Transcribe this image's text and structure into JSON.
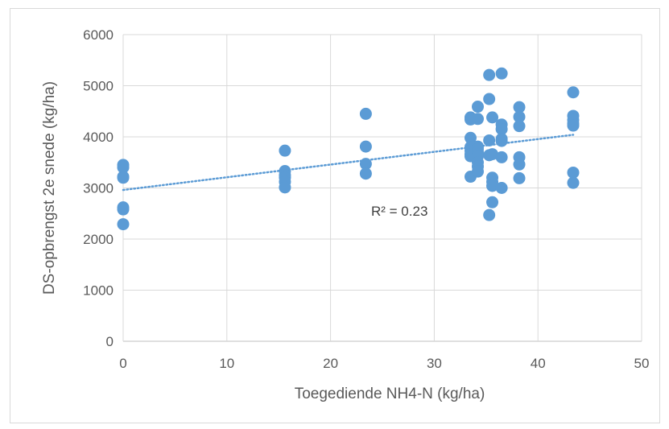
{
  "chart_data": {
    "type": "scatter",
    "xlabel": "Toegediende NH4-N (kg/ha)",
    "ylabel": "DS-opbrengst 2e snede (kg/ha)",
    "xlim": [
      0,
      50
    ],
    "ylim": [
      0,
      6000
    ],
    "xticks": [
      "0",
      "10",
      "20",
      "30",
      "40",
      "50"
    ],
    "yticks": [
      "0",
      "1000",
      "2000",
      "3000",
      "4000",
      "5000",
      "6000"
    ],
    "grid": true,
    "legend": "none",
    "marker_color": "#5b9bd5",
    "trendline": {
      "type": "linear",
      "style": "dotted",
      "x_start": 0,
      "y_start": 2960,
      "x_end": 43.4,
      "y_end": 4040,
      "label": "R² = 0.23"
    },
    "series": [
      {
        "points": [
          [
            0,
            3450
          ],
          [
            0,
            3400
          ],
          [
            0,
            3220
          ],
          [
            0,
            3200
          ],
          [
            0,
            2620
          ],
          [
            0,
            2580
          ],
          [
            0,
            2290
          ],
          [
            15.6,
            3730
          ],
          [
            15.6,
            3330
          ],
          [
            15.6,
            3250
          ],
          [
            15.6,
            3200
          ],
          [
            15.6,
            3120
          ],
          [
            15.6,
            3010
          ],
          [
            23.4,
            4450
          ],
          [
            23.4,
            3810
          ],
          [
            23.4,
            3470
          ],
          [
            23.4,
            3280
          ],
          [
            33.5,
            4380
          ],
          [
            33.5,
            4340
          ],
          [
            33.5,
            3980
          ],
          [
            33.5,
            3800
          ],
          [
            33.5,
            3730
          ],
          [
            33.5,
            3660
          ],
          [
            33.5,
            3620
          ],
          [
            33.5,
            3220
          ],
          [
            34.2,
            4590
          ],
          [
            34.2,
            4350
          ],
          [
            34.2,
            3810
          ],
          [
            34.2,
            3760
          ],
          [
            34.2,
            3700
          ],
          [
            34.2,
            3620
          ],
          [
            34.2,
            3500
          ],
          [
            34.2,
            3420
          ],
          [
            34.2,
            3320
          ],
          [
            35.3,
            5210
          ],
          [
            35.3,
            4740
          ],
          [
            35.3,
            3930
          ],
          [
            35.3,
            3640
          ],
          [
            35.3,
            2470
          ],
          [
            35.6,
            4380
          ],
          [
            35.6,
            3660
          ],
          [
            35.6,
            3200
          ],
          [
            35.6,
            3120
          ],
          [
            35.6,
            3040
          ],
          [
            35.6,
            2720
          ],
          [
            36.5,
            5240
          ],
          [
            36.5,
            4240
          ],
          [
            36.5,
            4150
          ],
          [
            36.5,
            3960
          ],
          [
            36.5,
            3920
          ],
          [
            36.5,
            3600
          ],
          [
            36.5,
            3000
          ],
          [
            38.2,
            4580
          ],
          [
            38.2,
            4390
          ],
          [
            38.2,
            4210
          ],
          [
            38.2,
            3600
          ],
          [
            38.2,
            3460
          ],
          [
            38.2,
            3190
          ],
          [
            43.4,
            4870
          ],
          [
            43.4,
            4410
          ],
          [
            43.4,
            4330
          ],
          [
            43.4,
            4260
          ],
          [
            43.4,
            4220
          ],
          [
            43.4,
            3300
          ],
          [
            43.4,
            3100
          ]
        ]
      }
    ]
  }
}
